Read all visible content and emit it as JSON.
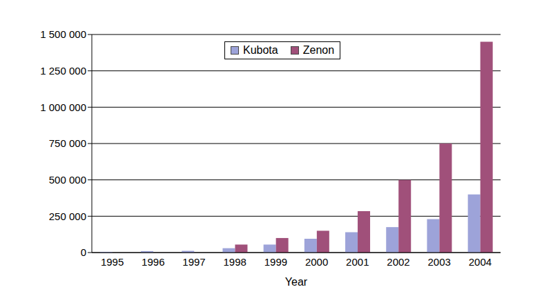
{
  "chart_data": {
    "type": "bar",
    "xlabel": "Year",
    "categories": [
      "1995",
      "1996",
      "1997",
      "1998",
      "1999",
      "2000",
      "2001",
      "2002",
      "2003",
      "2004"
    ],
    "series": [
      {
        "name": "Kubota",
        "color": "#9da3d9",
        "values": [
          5000,
          10000,
          12000,
          30000,
          55000,
          95000,
          140000,
          175000,
          230000,
          400000
        ]
      },
      {
        "name": "Zenon",
        "color": "#a0507a",
        "values": [
          null,
          null,
          null,
          55000,
          100000,
          150000,
          285000,
          500000,
          750000,
          1450000
        ]
      }
    ],
    "ylim": [
      0,
      1500000
    ],
    "yticks": [
      0,
      {
        "value": 250000,
        "label": "250 000"
      },
      {
        "value": 500000,
        "label": "500 000"
      },
      {
        "value": 750000,
        "label": "750 000"
      },
      {
        "value": 1000000,
        "label": "1 000 000"
      },
      {
        "value": 1250000,
        "label": "1 250 000"
      },
      {
        "value": 1500000,
        "label": "1 500 000"
      }
    ],
    "grid": true,
    "legend": "top"
  }
}
